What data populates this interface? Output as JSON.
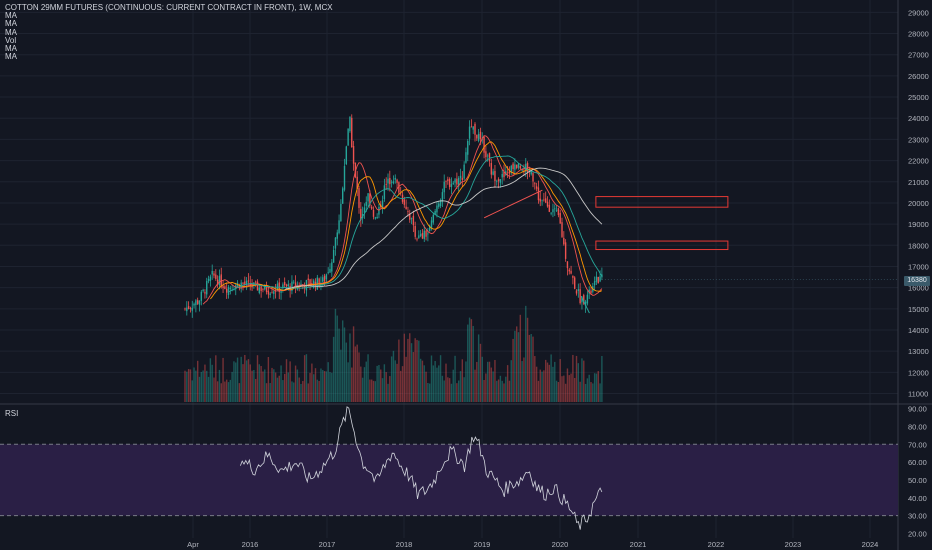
{
  "legend": {
    "title": "COTTON 29MM FUTURES (CONTINUOUS: CURRENT CONTRACT IN FRONT), 1W, MCX",
    "items": [
      "MA",
      "MA",
      "MA",
      "Vol",
      "MA",
      "MA"
    ]
  },
  "rsi_label": "RSI",
  "last_price": "16380",
  "colors": {
    "background": "#131722",
    "up": "#26a69a",
    "down": "#ef5350",
    "rsi_band": "#2a1f45",
    "rsi_line": "#d1d4dc",
    "zone": "#e53935"
  },
  "chart_data": [
    {
      "type": "candlestick",
      "x_ticks": [
        "Apr",
        "2016",
        "2017",
        "2018",
        "2019",
        "2020",
        "2021",
        "2022",
        "2023",
        "2024"
      ],
      "y_ticks": [
        11000,
        12000,
        13000,
        14000,
        15000,
        16000,
        17000,
        18000,
        19000,
        20000,
        21000,
        22000,
        23000,
        24000,
        25000,
        26000,
        27000,
        28000,
        29000
      ],
      "ylim": [
        10600,
        29300
      ],
      "series": [
        {
          "name": "MA",
          "kind": "ma_fast"
        },
        {
          "name": "MA",
          "kind": "ma_mid"
        },
        {
          "name": "MA",
          "kind": "ma_slow"
        },
        {
          "name": "Vol",
          "kind": "volume"
        }
      ],
      "close_path": [
        [
          0.0,
          15000
        ],
        [
          0.5,
          15400
        ],
        [
          1.0,
          16600
        ],
        [
          1.5,
          16000
        ],
        [
          2.0,
          16200
        ],
        [
          3.0,
          15900
        ],
        [
          4.0,
          16100
        ],
        [
          5.0,
          16300
        ],
        [
          5.3,
          17300
        ],
        [
          5.6,
          19500
        ],
        [
          5.8,
          22500
        ],
        [
          5.95,
          23900
        ],
        [
          6.1,
          21600
        ],
        [
          6.35,
          19300
        ],
        [
          6.6,
          20400
        ],
        [
          6.9,
          19100
        ],
        [
          7.2,
          20700
        ],
        [
          7.5,
          21300
        ],
        [
          7.8,
          20400
        ],
        [
          8.0,
          19800
        ],
        [
          8.4,
          18300
        ],
        [
          8.8,
          18600
        ],
        [
          9.1,
          19900
        ],
        [
          9.4,
          20900
        ],
        [
          9.7,
          21000
        ],
        [
          10.0,
          21200
        ],
        [
          10.3,
          23800
        ],
        [
          10.5,
          23300
        ],
        [
          10.8,
          22600
        ],
        [
          11.1,
          21300
        ],
        [
          11.5,
          21200
        ],
        [
          11.9,
          21800
        ],
        [
          12.2,
          21700
        ],
        [
          12.5,
          21500
        ],
        [
          12.8,
          20100
        ],
        [
          13.1,
          19900
        ],
        [
          13.5,
          19300
        ],
        [
          13.8,
          17100
        ],
        [
          14.1,
          16000
        ],
        [
          14.3,
          15400
        ],
        [
          14.6,
          15700
        ],
        [
          14.9,
          16400
        ],
        [
          15.05,
          16380
        ]
      ],
      "zones": [
        {
          "price_from": 19800,
          "price_to": 20300
        },
        {
          "price_from": 17800,
          "price_to": 18200
        }
      ],
      "last_price": 16380
    },
    {
      "type": "line",
      "name": "RSI",
      "y_ticks": [
        20.0,
        30.0,
        40.0,
        50.0,
        60.0,
        70.0,
        80.0,
        90.0
      ],
      "ylim": [
        17.5,
        92
      ],
      "band": [
        30,
        70
      ],
      "path": [
        [
          2.0,
          62
        ],
        [
          2.5,
          56
        ],
        [
          3.0,
          64
        ],
        [
          3.5,
          55
        ],
        [
          4.0,
          60
        ],
        [
          4.5,
          50
        ],
        [
          5.0,
          58
        ],
        [
          5.4,
          66
        ],
        [
          5.7,
          82
        ],
        [
          5.9,
          90
        ],
        [
          6.1,
          78
        ],
        [
          6.4,
          60
        ],
        [
          6.7,
          55
        ],
        [
          6.9,
          48
        ],
        [
          7.2,
          58
        ],
        [
          7.5,
          66
        ],
        [
          7.8,
          58
        ],
        [
          8.1,
          52
        ],
        [
          8.4,
          42
        ],
        [
          8.7,
          44
        ],
        [
          9.0,
          50
        ],
        [
          9.3,
          60
        ],
        [
          9.6,
          66
        ],
        [
          9.9,
          62
        ],
        [
          10.1,
          58
        ],
        [
          10.4,
          75
        ],
        [
          10.6,
          70
        ],
        [
          10.9,
          55
        ],
        [
          11.2,
          50
        ],
        [
          11.5,
          44
        ],
        [
          11.8,
          48
        ],
        [
          12.1,
          50
        ],
        [
          12.4,
          56
        ],
        [
          12.7,
          46
        ],
        [
          13.0,
          42
        ],
        [
          13.3,
          46
        ],
        [
          13.6,
          40
        ],
        [
          13.9,
          34
        ],
        [
          14.2,
          24
        ],
        [
          14.5,
          28
        ],
        [
          14.8,
          38
        ],
        [
          15.05,
          44
        ]
      ]
    }
  ]
}
